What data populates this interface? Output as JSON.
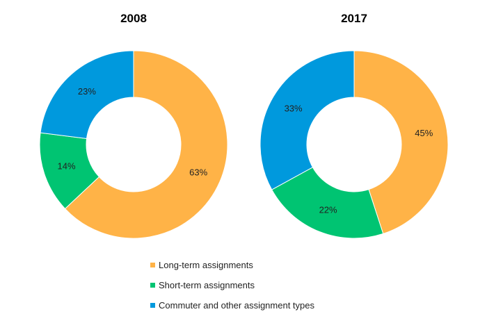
{
  "chart_data": {
    "type": "pie",
    "donut": true,
    "legend_position": "bottom",
    "series": [
      {
        "name": "Long-term assignments",
        "color": "#FFB347"
      },
      {
        "name": "Short-term assignments",
        "color": "#00C472"
      },
      {
        "name": "Commuter and other assignment types",
        "color": "#0099DD"
      }
    ],
    "charts": [
      {
        "title": "2008",
        "values": [
          63,
          14,
          23
        ],
        "labels": [
          "63%",
          "14%",
          "23%"
        ]
      },
      {
        "title": "2017",
        "values": [
          45,
          22,
          33
        ],
        "labels": [
          "45%",
          "22%",
          "33%"
        ]
      }
    ]
  }
}
